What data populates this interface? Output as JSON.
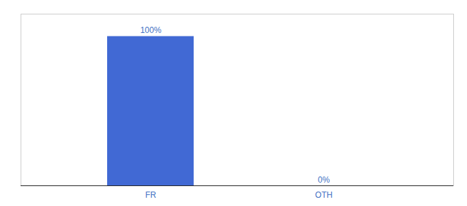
{
  "chart_data": {
    "type": "bar",
    "categories": [
      "FR",
      "OTH"
    ],
    "values": [
      100,
      0
    ],
    "value_labels": [
      "100%",
      "0%"
    ],
    "data_labels": true,
    "color": "#4169d4",
    "ylim": [
      0,
      115
    ],
    "tick_labels": "x"
  }
}
